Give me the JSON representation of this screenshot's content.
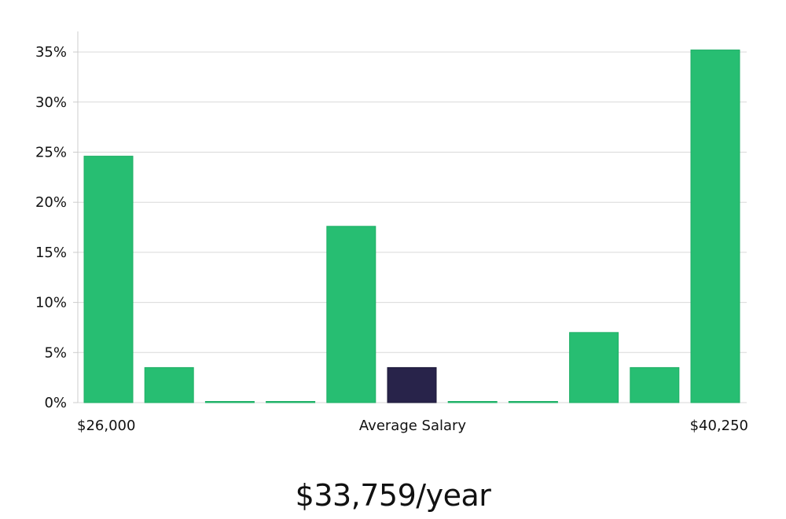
{
  "headline": "$33,759/year",
  "chart_data": {
    "type": "bar",
    "title": "",
    "xlabel": "",
    "ylabel": "",
    "ylim": [
      0,
      37
    ],
    "yticks": [
      "0%",
      "5%",
      "10%",
      "15%",
      "20%",
      "25%",
      "30%",
      "35%"
    ],
    "ytick_values": [
      0,
      5,
      10,
      15,
      20,
      25,
      30,
      35
    ],
    "x_labels": {
      "left": "$26,000",
      "center": "Average Salary",
      "right": "$40,250"
    },
    "values": [
      24.6,
      3.5,
      0,
      0,
      17.6,
      3.5,
      0,
      0,
      7.0,
      3.5,
      35.2
    ],
    "highlight_index": 5,
    "grid": true,
    "colors": {
      "bar": "#27be72",
      "highlight": "#28234a",
      "grid": "#d9d9d9",
      "axis": "#cccccc"
    }
  }
}
